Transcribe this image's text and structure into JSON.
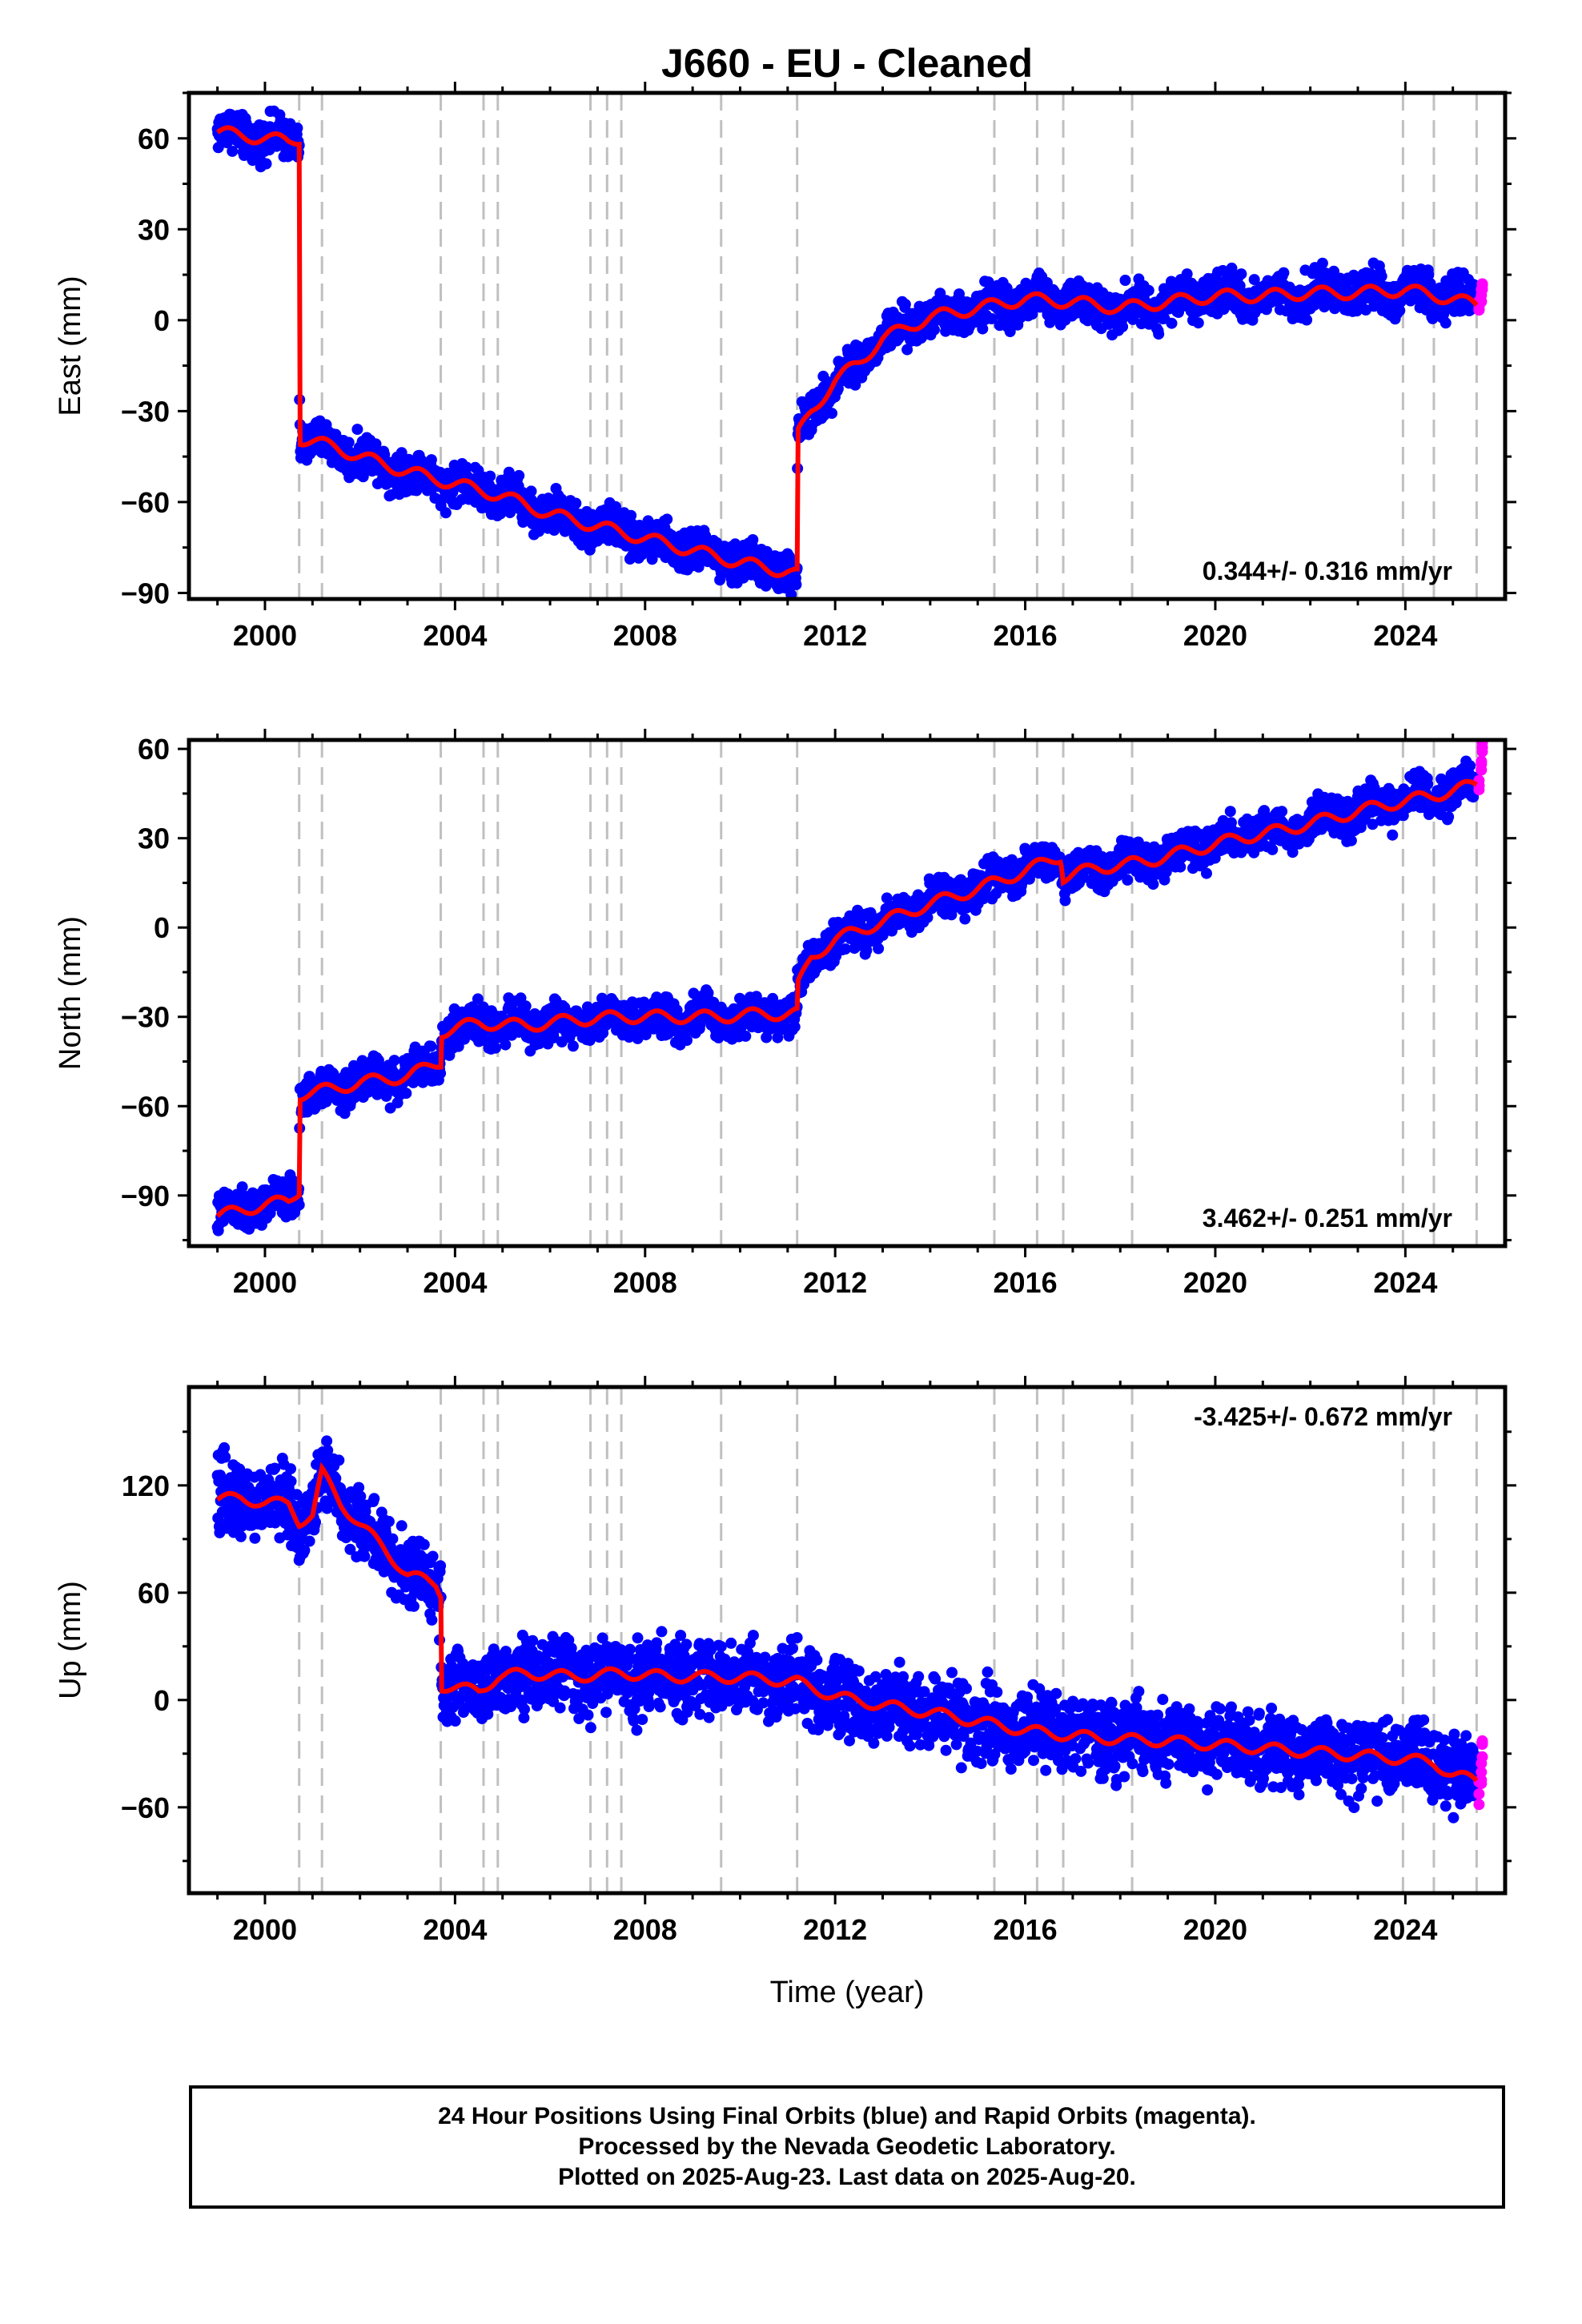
{
  "title": "J660  - EU - Cleaned",
  "footer": {
    "line1": "24 Hour Positions Using Final Orbits (blue) and Rapid Orbits (magenta).",
    "line2": "Processed by the Nevada Geodetic Laboratory.",
    "line3": "Plotted on 2025-Aug-23. Last data on 2025-Aug-20."
  },
  "colors": {
    "final": "#0000ff",
    "rapid": "#ff00ff",
    "model": "#ff0000",
    "step_line": "#c0c0c0"
  },
  "chart_data": [
    {
      "type": "scatter",
      "ylabel": "East (mm)",
      "xlabel": "",
      "xlim": [
        1998.4,
        2026.1
      ],
      "ylim": [
        -92,
        75
      ],
      "xticks": [
        2000,
        2004,
        2008,
        2012,
        2016,
        2020,
        2024
      ],
      "yticks": [
        -90,
        -60,
        -30,
        0,
        30,
        60
      ],
      "rate": "0.344+/- 0.316 mm/yr",
      "rate_position": "bottom-right",
      "step_lines": [
        2000.72,
        2001.2,
        2003.7,
        2004.6,
        2004.9,
        2006.85,
        2007.2,
        2007.5,
        2009.6,
        2011.2,
        2015.35,
        2016.25,
        2016.8,
        2018.25,
        2023.95,
        2024.6,
        2025.5
      ],
      "series": [
        {
          "role": "final",
          "x": [
            1999.0,
            1999.5,
            2000.0,
            2000.5,
            2000.72,
            2000.73,
            2001.5,
            2002.0,
            2003.0,
            2004.0,
            2005.0,
            2006.0,
            2007.0,
            2008.0,
            2009.0,
            2010.0,
            2011.0,
            2011.2,
            2011.21,
            2011.5,
            2012.0,
            2012.5,
            2013.0,
            2014.0,
            2015.0,
            2016.0,
            2017.0,
            2018.0,
            2019.0,
            2020.0,
            2021.0,
            2022.0,
            2023.0,
            2024.0,
            2025.0,
            2025.5
          ],
          "y": [
            62,
            61,
            60,
            59,
            60,
            -39,
            -42,
            -45,
            -50,
            -54,
            -58,
            -64,
            -68,
            -72,
            -76,
            -80,
            -83,
            -84,
            -38,
            -30,
            -20,
            -14,
            -6,
            1,
            4,
            7,
            6,
            4,
            6,
            8,
            8,
            9,
            9,
            10,
            7,
            5
          ]
        },
        {
          "role": "rapid",
          "x": [
            2025.55,
            2025.6,
            2025.62
          ],
          "y": [
            4,
            8,
            12
          ]
        }
      ]
    },
    {
      "type": "scatter",
      "ylabel": "North (mm)",
      "xlabel": "",
      "xlim": [
        1998.4,
        2026.1
      ],
      "ylim": [
        -107,
        63
      ],
      "xticks": [
        2000,
        2004,
        2008,
        2012,
        2016,
        2020,
        2024
      ],
      "yticks": [
        -90,
        -60,
        -30,
        0,
        30,
        60
      ],
      "rate": "3.462+/- 0.251 mm/yr",
      "rate_position": "bottom-right",
      "step_lines": [
        2000.72,
        2001.2,
        2003.7,
        2004.6,
        2004.9,
        2006.85,
        2007.2,
        2007.5,
        2009.6,
        2011.2,
        2015.35,
        2016.25,
        2016.8,
        2018.25,
        2023.95,
        2024.6,
        2025.5
      ],
      "series": [
        {
          "role": "final",
          "x": [
            1999.0,
            1999.5,
            2000.0,
            2000.5,
            2000.72,
            2000.73,
            2001.5,
            2002.0,
            2003.0,
            2003.7,
            2003.71,
            2004.5,
            2005.5,
            2006.5,
            2007.5,
            2008.5,
            2009.5,
            2010.5,
            2011.2,
            2011.21,
            2011.5,
            2012.0,
            2013.0,
            2014.0,
            2015.0,
            2016.0,
            2016.75,
            2016.8,
            2017.5,
            2018.5,
            2019.5,
            2020.5,
            2021.5,
            2022.5,
            2023.5,
            2024.5,
            2025.5
          ],
          "y": [
            -97,
            -95,
            -93,
            -92,
            -88,
            -56,
            -54,
            -52,
            -50,
            -45,
            -35,
            -32,
            -33,
            -31,
            -30,
            -30,
            -30,
            -29,
            -29,
            -20,
            -10,
            -4,
            2,
            8,
            13,
            19,
            24,
            17,
            20,
            22,
            26,
            30,
            33,
            37,
            41,
            44,
            48
          ]
        },
        {
          "role": "rapid",
          "x": [
            2025.55,
            2025.6,
            2025.62
          ],
          "y": [
            48,
            54,
            60
          ]
        }
      ]
    },
    {
      "type": "scatter",
      "ylabel": "Up (mm)",
      "xlabel": "Time (year)",
      "xlim": [
        1998.4,
        2026.1
      ],
      "ylim": [
        -108,
        175
      ],
      "xticks": [
        2000,
        2004,
        2008,
        2012,
        2016,
        2020,
        2024
      ],
      "yticks": [
        -60,
        0,
        60,
        120
      ],
      "rate": "-3.425+/- 0.672 mm/yr",
      "rate_position": "top-right",
      "step_lines": [
        2000.72,
        2001.2,
        2003.7,
        2004.6,
        2004.9,
        2006.85,
        2007.2,
        2007.5,
        2009.6,
        2011.2,
        2015.35,
        2016.25,
        2016.8,
        2018.25,
        2023.95,
        2024.6,
        2025.5
      ],
      "series": [
        {
          "role": "final",
          "x": [
            1999.0,
            1999.5,
            2000.0,
            2000.5,
            2000.72,
            2001.0,
            2001.2,
            2001.6,
            2002.0,
            2002.5,
            2003.0,
            2003.6,
            2003.7,
            2003.72,
            2004.5,
            2004.9,
            2005.5,
            2006.5,
            2007.5,
            2008.5,
            2009.5,
            2010.5,
            2011.2,
            2012.0,
            2013.0,
            2014.0,
            2015.0,
            2016.0,
            2017.0,
            2018.0,
            2019.0,
            2020.0,
            2021.0,
            2022.0,
            2023.0,
            2024.0,
            2024.6,
            2025.0,
            2025.5
          ],
          "y": [
            112,
            113,
            110,
            110,
            100,
            103,
            127,
            110,
            98,
            85,
            70,
            65,
            60,
            8,
            5,
            13,
            15,
            13,
            15,
            13,
            13,
            12,
            10,
            2,
            -3,
            -7,
            -12,
            -17,
            -20,
            -22,
            -23,
            -25,
            -27,
            -29,
            -31,
            -33,
            -35,
            -42,
            -45
          ]
        },
        {
          "role": "rapid",
          "x": [
            2025.55,
            2025.6,
            2025.62
          ],
          "y": [
            -52,
            -40,
            -27
          ]
        }
      ]
    }
  ]
}
